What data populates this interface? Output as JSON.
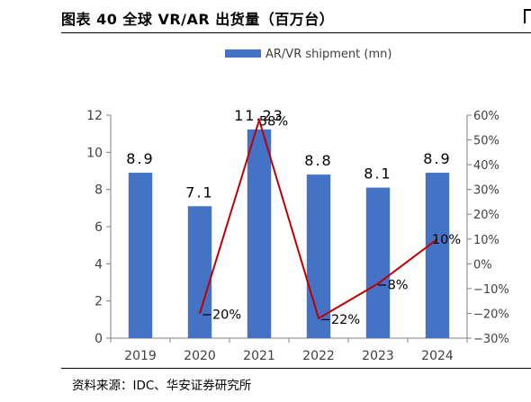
{
  "figure": {
    "title": "图表 40  全球 VR/AR 出货量（百万台）",
    "source": "资料来源：IDC、华安证券研究所"
  },
  "colors": {
    "bar": "#4472C4",
    "line": "#C00000",
    "axis": "#808080",
    "text": "#000000"
  },
  "chart_data": {
    "type": "bar",
    "title": "",
    "xlabel": "",
    "ylabel": "",
    "categories": [
      "2019",
      "2020",
      "2021",
      "2022",
      "2023",
      "2024"
    ],
    "ylim": [
      0,
      12
    ],
    "yticks": [
      "0",
      "2",
      "4",
      "6",
      "8",
      "10",
      "12"
    ],
    "y2lim": [
      -30,
      60
    ],
    "y2ticks": [
      "-30%",
      "-20%",
      "-10%",
      "0%",
      "10%",
      "20%",
      "30%",
      "40%",
      "50%",
      "60%"
    ],
    "legend_position": "top",
    "series": [
      {
        "name": "AR/VR shipment (mn)",
        "type": "bar",
        "values": [
          8.9,
          7.1,
          11.23,
          8.8,
          8.1,
          8.9
        ],
        "labels": [
          "8.9",
          "7.1",
          "11.23",
          "8.8",
          "8.1",
          "8.9"
        ]
      },
      {
        "type": "line",
        "axis": "right",
        "x": [
          "2020",
          "2021",
          "2022",
          "2023",
          "2024"
        ],
        "values": [
          -20,
          58,
          -22,
          -8,
          10
        ],
        "labels": [
          "-20%",
          "58%",
          "-22%",
          "-8%",
          "10%"
        ]
      }
    ]
  }
}
